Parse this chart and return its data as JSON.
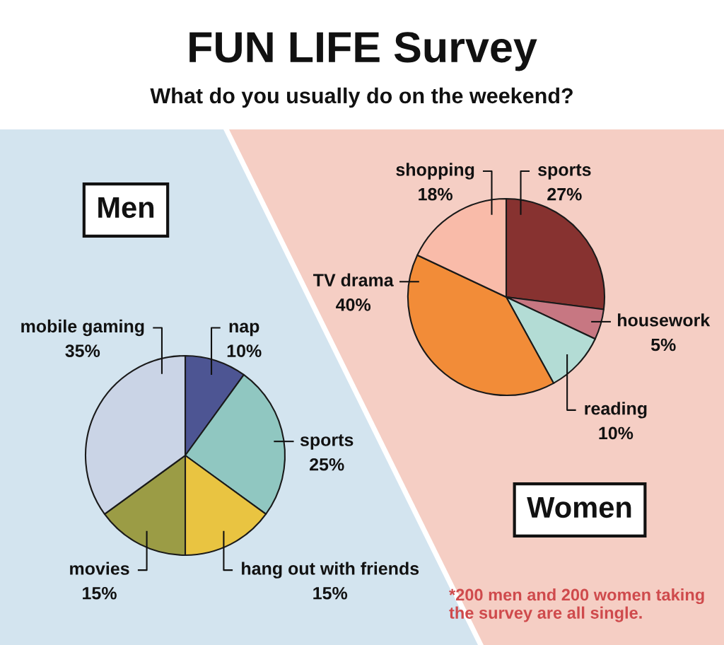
{
  "chart_data": [
    {
      "type": "pie",
      "title": "Men",
      "categories": [
        "nap",
        "sports",
        "hang out with friends",
        "movies",
        "mobile gaming"
      ],
      "values": [
        10,
        25,
        15,
        15,
        35
      ],
      "colors": [
        "#4d5593",
        "#90c7c1",
        "#e9c441",
        "#9b9c45",
        "#cad4e6"
      ],
      "value_labels": [
        "10%",
        "25%",
        "15%",
        "15%",
        "35%"
      ],
      "annotations": [
        "FUN LIFE Survey",
        "What do you usually do on the weekend?"
      ]
    },
    {
      "type": "pie",
      "title": "Women",
      "categories": [
        "sports",
        "housework",
        "reading",
        "TV drama",
        "shopping"
      ],
      "values": [
        27,
        5,
        10,
        40,
        18
      ],
      "colors": [
        "#873230",
        "#c77782",
        "#b3dcd5",
        "#f28c38",
        "#f9bba9"
      ],
      "value_labels": [
        "27%",
        "5%",
        "10%",
        "40%",
        "18%"
      ],
      "annotations": [
        "*200 men and 200 women taking the survey are all single."
      ]
    }
  ]
}
